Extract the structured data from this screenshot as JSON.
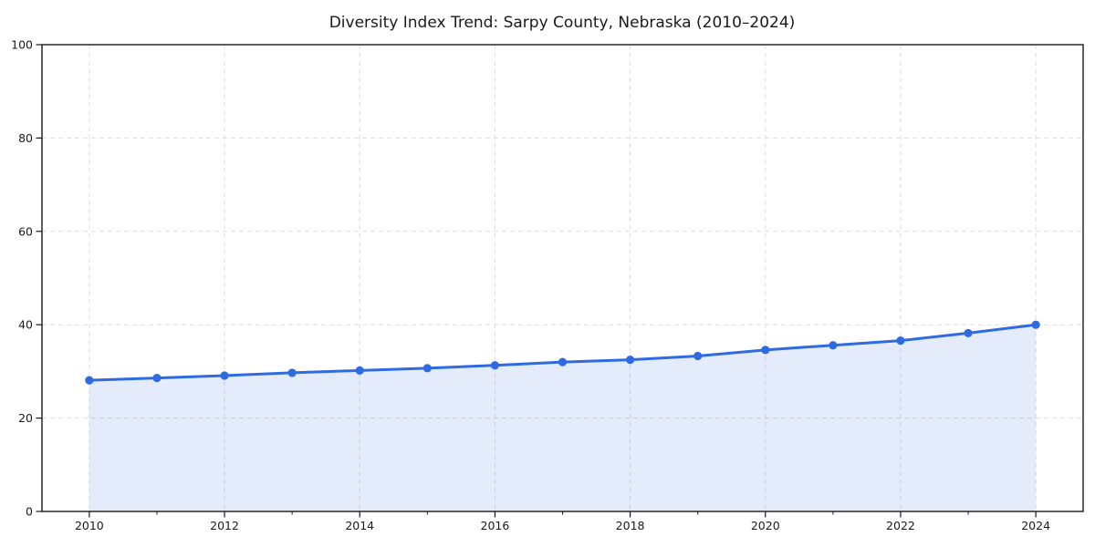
{
  "chart_data": {
    "type": "line",
    "title": "Diversity Index Trend: Sarpy County, Nebraska (2010–2024)",
    "xlabel": "",
    "ylabel": "",
    "x": [
      2010,
      2011,
      2012,
      2013,
      2014,
      2015,
      2016,
      2017,
      2018,
      2019,
      2020,
      2021,
      2022,
      2023,
      2024
    ],
    "series": [
      {
        "name": "Diversity Index",
        "values": [
          28.1,
          28.6,
          29.1,
          29.7,
          30.2,
          30.7,
          31.3,
          32.0,
          32.5,
          33.3,
          34.6,
          35.6,
          36.6,
          38.2,
          40.0
        ]
      }
    ],
    "xlim": [
      2009.3,
      2024.7
    ],
    "ylim": [
      0,
      100
    ],
    "xticks": [
      2010,
      2012,
      2014,
      2016,
      2018,
      2020,
      2022,
      2024
    ],
    "minor_xticks": [
      2011,
      2013,
      2015,
      2017,
      2019,
      2021,
      2023
    ],
    "yticks": [
      0,
      20,
      40,
      60,
      80,
      100
    ],
    "grid": true,
    "grid_style": "dashed",
    "legend": "none",
    "marker": "circle",
    "area_fill": true,
    "colors": {
      "line": "#2e6be2",
      "marker": "#2e6be2",
      "fill": "rgba(46, 107, 226, 0.13)",
      "grid": "#dddddd",
      "spine": "#1a1a1a",
      "text": "#1a1a1a",
      "background": "#ffffff"
    }
  }
}
